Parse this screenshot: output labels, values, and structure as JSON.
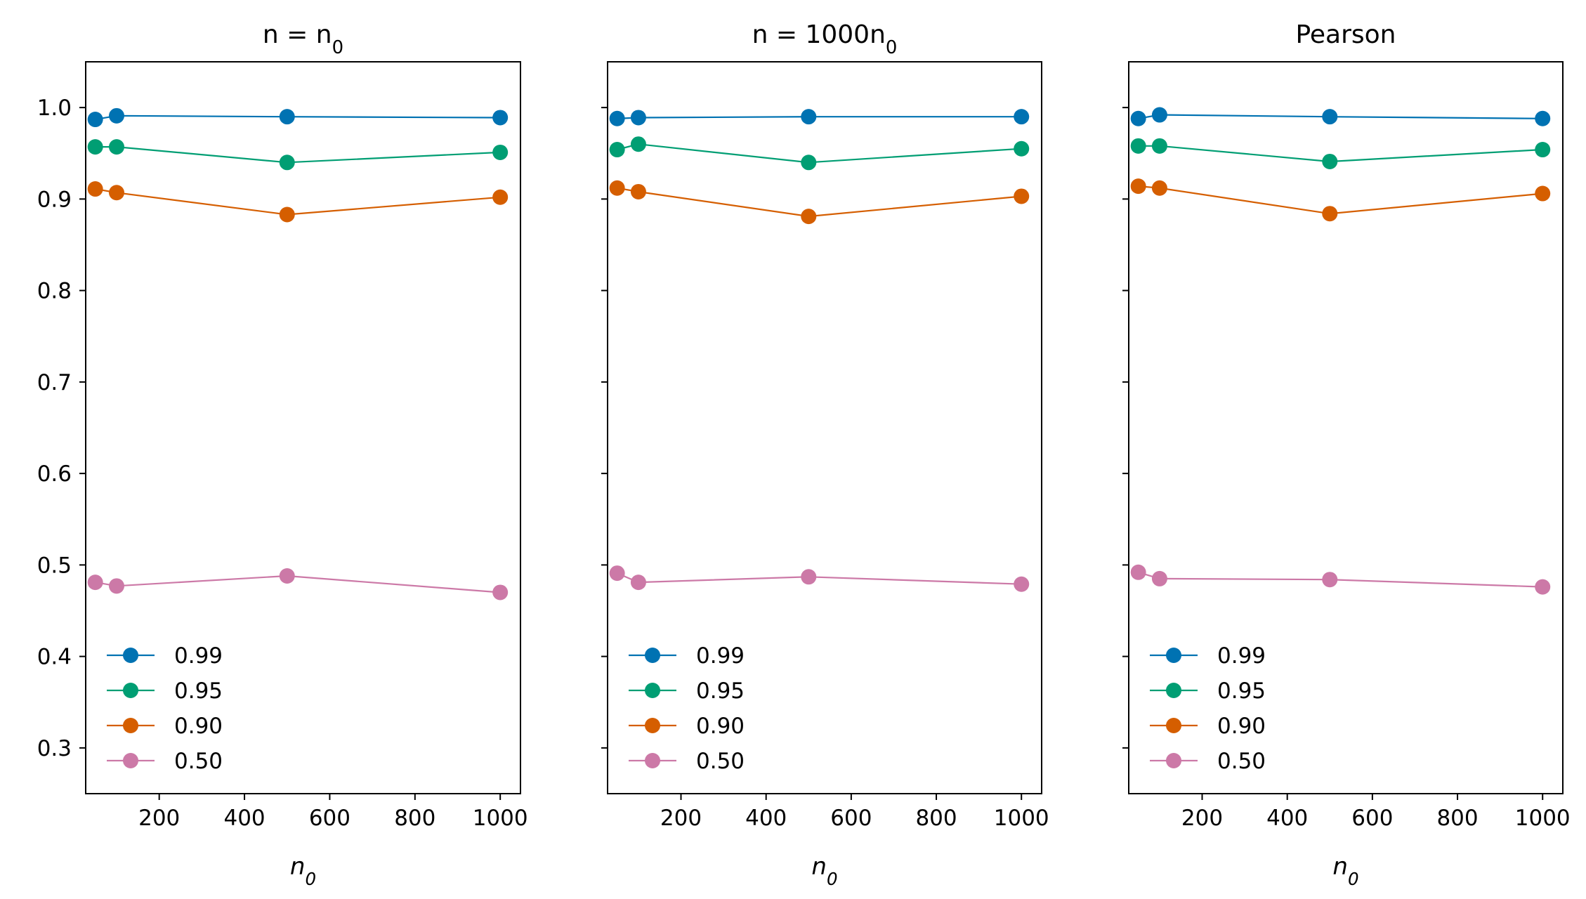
{
  "chart_data": [
    {
      "type": "line",
      "title": "n = n0",
      "title_parts": {
        "base": "n = n",
        "sub": "0"
      },
      "xlabel": "n0",
      "xlabel_parts": {
        "base": "n",
        "sub": "0"
      },
      "ylabel": "",
      "xlim": [
        27.5,
        1047.5
      ],
      "ylim": [
        0.25,
        1.05
      ],
      "xticks": [
        200,
        400,
        600,
        800,
        1000
      ],
      "yticks": [
        "0.3",
        "0.4",
        "0.5",
        "0.6",
        "0.7",
        "0.8",
        "0.9",
        "1.0"
      ],
      "show_yticklabels": true,
      "x": [
        50,
        100,
        500,
        1000
      ],
      "legend_position": "lower-left",
      "series": [
        {
          "name": "0.99",
          "color": "#0072b2",
          "values": [
            0.987,
            0.991,
            0.99,
            0.989
          ]
        },
        {
          "name": "0.95",
          "color": "#009e73",
          "values": [
            0.957,
            0.957,
            0.94,
            0.951
          ]
        },
        {
          "name": "0.90",
          "color": "#d55e00",
          "values": [
            0.911,
            0.907,
            0.883,
            0.902
          ]
        },
        {
          "name": "0.50",
          "color": "#cc79a7",
          "values": [
            0.481,
            0.477,
            0.488,
            0.47
          ]
        }
      ]
    },
    {
      "type": "line",
      "title": "n = 1000n0",
      "title_parts": {
        "base": "n = 1000n",
        "sub": "0"
      },
      "xlabel": "n0",
      "xlabel_parts": {
        "base": "n",
        "sub": "0"
      },
      "ylabel": "",
      "xlim": [
        27.5,
        1047.5
      ],
      "ylim": [
        0.25,
        1.05
      ],
      "xticks": [
        200,
        400,
        600,
        800,
        1000
      ],
      "yticks": [
        "0.3",
        "0.4",
        "0.5",
        "0.6",
        "0.7",
        "0.8",
        "0.9",
        "1.0"
      ],
      "show_yticklabels": false,
      "x": [
        50,
        100,
        500,
        1000
      ],
      "legend_position": "lower-left",
      "series": [
        {
          "name": "0.99",
          "color": "#0072b2",
          "values": [
            0.988,
            0.989,
            0.99,
            0.99
          ]
        },
        {
          "name": "0.95",
          "color": "#009e73",
          "values": [
            0.954,
            0.96,
            0.94,
            0.955
          ]
        },
        {
          "name": "0.90",
          "color": "#d55e00",
          "values": [
            0.912,
            0.908,
            0.881,
            0.903
          ]
        },
        {
          "name": "0.50",
          "color": "#cc79a7",
          "values": [
            0.491,
            0.481,
            0.487,
            0.479
          ]
        }
      ]
    },
    {
      "type": "line",
      "title": "Pearson",
      "title_parts": {
        "base": "Pearson",
        "sub": ""
      },
      "xlabel": "n0",
      "xlabel_parts": {
        "base": "n",
        "sub": "0"
      },
      "ylabel": "",
      "xlim": [
        27.5,
        1047.5
      ],
      "ylim": [
        0.25,
        1.05
      ],
      "xticks": [
        200,
        400,
        600,
        800,
        1000
      ],
      "yticks": [
        "0.3",
        "0.4",
        "0.5",
        "0.6",
        "0.7",
        "0.8",
        "0.9",
        "1.0"
      ],
      "show_yticklabels": false,
      "x": [
        50,
        100,
        500,
        1000
      ],
      "legend_position": "lower-left",
      "series": [
        {
          "name": "0.99",
          "color": "#0072b2",
          "values": [
            0.988,
            0.992,
            0.99,
            0.988
          ]
        },
        {
          "name": "0.95",
          "color": "#009e73",
          "values": [
            0.958,
            0.958,
            0.941,
            0.954
          ]
        },
        {
          "name": "0.90",
          "color": "#d55e00",
          "values": [
            0.914,
            0.912,
            0.884,
            0.906
          ]
        },
        {
          "name": "0.50",
          "color": "#cc79a7",
          "values": [
            0.492,
            0.485,
            0.484,
            0.476
          ]
        }
      ]
    }
  ]
}
